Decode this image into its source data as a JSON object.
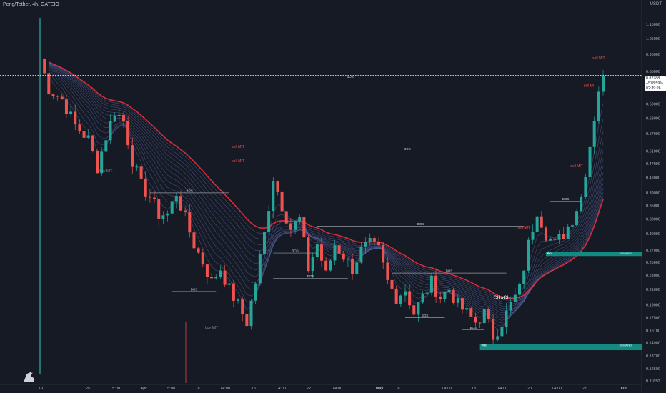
{
  "header": {
    "title": "Peng/Tether, 4h, GATEIO"
  },
  "axis": {
    "unit": "USDT"
  },
  "price_badge": {
    "price": "0.82788",
    "change": "+578.59%",
    "countdown": "02:39:26"
  },
  "colors": {
    "background": "#161a25",
    "bull": "#26a69a",
    "bear": "#ef5350",
    "ribbon_fast": "#5b6aa8",
    "ribbon_slow": "#ec2f3d",
    "bos_line": "#9598a1",
    "sell_label": "#ef5350",
    "buy_label": "#8a8d96",
    "demand_zone": "#138b82"
  },
  "icons": {
    "logo": "tradingview-dino-icon"
  },
  "chart_data": {
    "type": "candlestick",
    "title": "Peng/Tether, 4h, GATEIO",
    "y_axis": {
      "scale": "log",
      "unit": "USDT",
      "ticks": [
        "1.15000",
        "1.05000",
        "0.95000",
        "0.85000",
        "0.77000",
        "0.69000",
        "0.63000",
        "0.57000",
        "0.51000",
        "0.47000",
        "0.43000",
        "0.39000",
        "0.36000",
        "0.33000",
        "0.30000",
        "0.27000",
        "0.25000",
        "0.23000",
        "0.21000",
        "0.19000",
        "0.17500",
        "0.16100",
        "0.14900",
        "0.13700",
        "0.12600",
        "0.11650"
      ]
    },
    "x_axis": {
      "ticks": [
        "19",
        "25",
        "15:00",
        "Apr",
        "15:00",
        "8",
        "14:00",
        "15",
        "14:00",
        "22",
        "14:00",
        "May",
        "6",
        "14:00",
        "13",
        "14:00",
        "20",
        "14:00",
        "27",
        "Jun"
      ]
    },
    "last_price": 0.82788,
    "price_path": [
      [
        0,
        0.92
      ],
      [
        2,
        0.76
      ],
      [
        5,
        0.71
      ],
      [
        8,
        0.6
      ],
      [
        11,
        0.55
      ],
      [
        13,
        0.46
      ],
      [
        15,
        0.56
      ],
      [
        17,
        0.66
      ],
      [
        19,
        0.62
      ],
      [
        21,
        0.48
      ],
      [
        23,
        0.41
      ],
      [
        25,
        0.38
      ],
      [
        27,
        0.34
      ],
      [
        29,
        0.34
      ],
      [
        31,
        0.39
      ],
      [
        33,
        0.33
      ],
      [
        35,
        0.28
      ],
      [
        37,
        0.25
      ],
      [
        39,
        0.22
      ],
      [
        41,
        0.24
      ],
      [
        43,
        0.21
      ],
      [
        45,
        0.19
      ],
      [
        47,
        0.17
      ],
      [
        49,
        0.22
      ],
      [
        51,
        0.3
      ],
      [
        53,
        0.43
      ],
      [
        55,
        0.36
      ],
      [
        57,
        0.31
      ],
      [
        59,
        0.33
      ],
      [
        61,
        0.24
      ],
      [
        63,
        0.28
      ],
      [
        65,
        0.23
      ],
      [
        67,
        0.28
      ],
      [
        69,
        0.26
      ],
      [
        71,
        0.24
      ],
      [
        73,
        0.27
      ],
      [
        75,
        0.28
      ],
      [
        77,
        0.27
      ],
      [
        79,
        0.22
      ],
      [
        81,
        0.2
      ],
      [
        83,
        0.21
      ],
      [
        85,
        0.18
      ],
      [
        87,
        0.2
      ],
      [
        89,
        0.22
      ],
      [
        91,
        0.2
      ],
      [
        93,
        0.21
      ],
      [
        95,
        0.19
      ],
      [
        97,
        0.18
      ],
      [
        99,
        0.17
      ],
      [
        101,
        0.18
      ],
      [
        103,
        0.155
      ],
      [
        105,
        0.17
      ],
      [
        107,
        0.19
      ],
      [
        109,
        0.21
      ],
      [
        111,
        0.28
      ],
      [
        113,
        0.35
      ],
      [
        115,
        0.3
      ],
      [
        117,
        0.28
      ],
      [
        119,
        0.3
      ],
      [
        121,
        0.33
      ],
      [
        123,
        0.38
      ],
      [
        125,
        0.53
      ],
      [
        127,
        0.76
      ],
      [
        128,
        0.83
      ]
    ],
    "annotations": [
      {
        "type": "bos",
        "label": "BOS",
        "price": 0.81,
        "x_from": 13,
        "x_to": 128
      },
      {
        "type": "bos",
        "label": "BOS",
        "price": 0.51,
        "x_from": 43,
        "x_to": 124
      },
      {
        "type": "bos",
        "label": "BOS",
        "price": 0.39,
        "x_from": 25,
        "x_to": 43
      },
      {
        "type": "bos",
        "label": "BOS",
        "price": 0.315,
        "x_from": 63,
        "x_to": 110
      },
      {
        "type": "bos",
        "label": "BOS",
        "price": 0.265,
        "x_from": 53,
        "x_to": 63
      },
      {
        "type": "bos",
        "label": "BOS",
        "price": 0.233,
        "x_from": 80,
        "x_to": 106
      },
      {
        "type": "bos",
        "label": "BOS",
        "price": 0.225,
        "x_from": 53,
        "x_to": 70
      },
      {
        "type": "bos",
        "label": "BOS",
        "price": 0.207,
        "x_from": 30,
        "x_to": 40
      },
      {
        "type": "bos",
        "label": "BOS",
        "price": 0.175,
        "x_from": 83,
        "x_to": 92
      },
      {
        "type": "bos",
        "label": "BOS",
        "price": 0.162,
        "x_from": 96,
        "x_to": 101
      },
      {
        "type": "bos",
        "label": "BOS",
        "price": 0.37,
        "x_from": 116,
        "x_to": 123
      },
      {
        "type": "label",
        "label": "sell MIT",
        "price": 0.52,
        "x": 45
      },
      {
        "type": "label",
        "label": "sell MIT",
        "price": 0.475,
        "x": 45
      },
      {
        "type": "label",
        "label": "sell MIT",
        "price": 0.31,
        "x": 110
      },
      {
        "type": "label",
        "label": "sell MIT",
        "price": 0.46,
        "x": 122
      },
      {
        "type": "label",
        "label": "sell MIT",
        "price": 0.77,
        "x": 125
      },
      {
        "type": "label",
        "label": "sell MIT",
        "price": 0.92,
        "x": 127
      },
      {
        "type": "label",
        "label": "buy MIT",
        "price": 0.445,
        "x": 15
      },
      {
        "type": "label",
        "label": "buy MIT",
        "price": 0.163,
        "x": 39
      },
      {
        "type": "label",
        "label": "CHoCH",
        "price": 0.197,
        "x": 105
      }
    ],
    "zones": [
      {
        "label": "DEMAND",
        "tag": "POI",
        "price_top": 0.267,
        "price_bottom": 0.26,
        "x_from": 115
      },
      {
        "label": "DEMAND",
        "tag": "POI",
        "price_top": 0.148,
        "price_bottom": 0.142,
        "x_from": 100
      }
    ]
  }
}
